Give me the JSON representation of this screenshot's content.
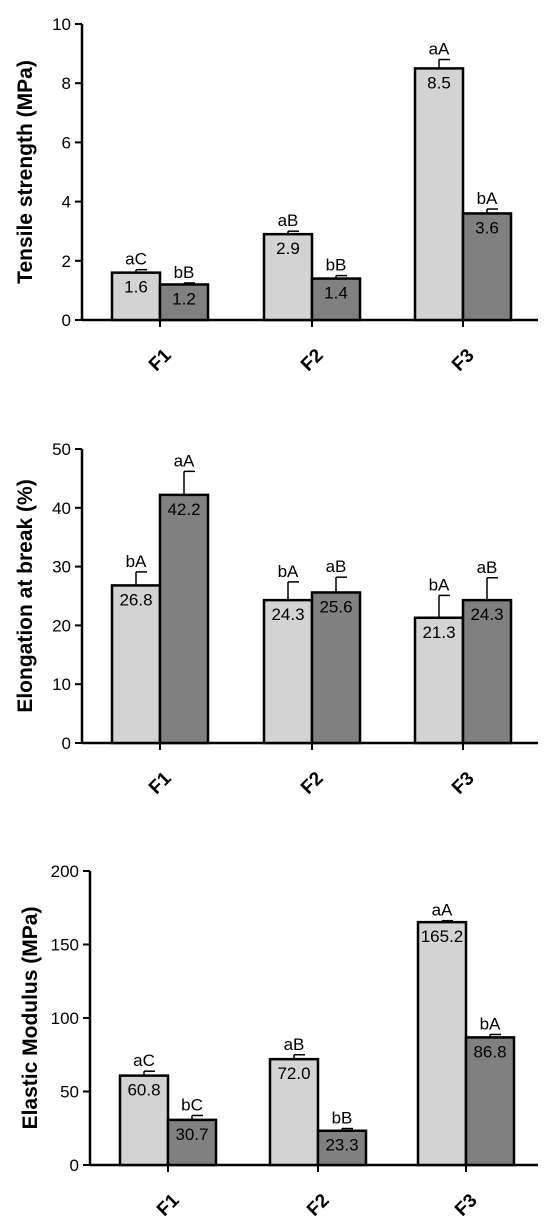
{
  "colors": {
    "series_a": "#d3d3d3",
    "series_b": "#808080",
    "axis": "#000000"
  },
  "chart_data": [
    {
      "type": "bar",
      "title": "",
      "xlabel": "",
      "ylabel": "Tensile strength (MPa)",
      "ylim": [
        0,
        10
      ],
      "yticks": [
        0,
        2,
        4,
        6,
        8,
        10
      ],
      "grid": false,
      "categories": [
        "F1",
        "F2",
        "F3"
      ],
      "series": [
        {
          "values": [
            1.6,
            2.9,
            8.5
          ],
          "errors": [
            0.1,
            0.1,
            0.3
          ],
          "labels": [
            "1.6",
            "2.9",
            "8.5"
          ],
          "letters": [
            "aC",
            "aB",
            "aA"
          ]
        },
        {
          "values": [
            1.2,
            1.4,
            3.6
          ],
          "errors": [
            0.05,
            0.1,
            0.15
          ],
          "labels": [
            "1.2",
            "1.4",
            "3.6"
          ],
          "letters": [
            "bB",
            "bB",
            "bA"
          ]
        }
      ]
    },
    {
      "type": "bar",
      "title": "",
      "xlabel": "",
      "ylabel": "Elongation at break (%)",
      "ylim": [
        0,
        50
      ],
      "yticks": [
        0,
        10,
        20,
        30,
        40,
        50
      ],
      "grid": false,
      "categories": [
        "F1",
        "F2",
        "F3"
      ],
      "series": [
        {
          "values": [
            26.8,
            24.3,
            21.3
          ],
          "errors": [
            2.3,
            3.1,
            3.8
          ],
          "labels": [
            "26.8",
            "24.3",
            "21.3"
          ],
          "letters": [
            "bA",
            "bA",
            "bA"
          ]
        },
        {
          "values": [
            42.2,
            25.6,
            24.3
          ],
          "errors": [
            4.0,
            2.6,
            3.8
          ],
          "labels": [
            "42.2",
            "25.6",
            "24.3"
          ],
          "letters": [
            "aA",
            "aB",
            "aB"
          ]
        }
      ]
    },
    {
      "type": "bar",
      "title": "",
      "xlabel": "",
      "ylabel": "Elastic Modulus (MPa)",
      "ylim": [
        0,
        200
      ],
      "yticks": [
        0,
        50,
        100,
        150,
        200
      ],
      "grid": false,
      "categories": [
        "F1",
        "F2",
        "F3"
      ],
      "series": [
        {
          "values": [
            60.8,
            72.0,
            165.2
          ],
          "errors": [
            3.0,
            3.0,
            1.0
          ],
          "labels": [
            "60.8",
            "72.0",
            "165.2"
          ],
          "letters": [
            "aC",
            "aB",
            "aA"
          ]
        },
        {
          "values": [
            30.7,
            23.3,
            86.8
          ],
          "errors": [
            3.0,
            1.5,
            2.0
          ],
          "labels": [
            "30.7",
            "23.3",
            "86.8"
          ],
          "letters": [
            "bC",
            "bB",
            "bA"
          ]
        }
      ]
    }
  ]
}
